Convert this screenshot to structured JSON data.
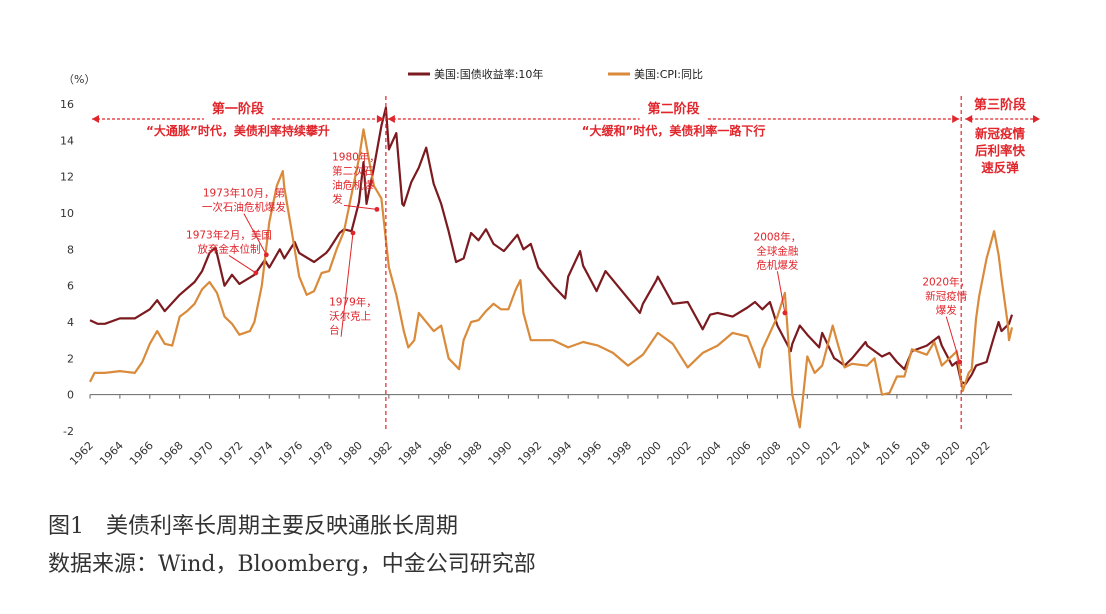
{
  "figure": {
    "title": "图1　美债利率长周期主要反映通胀长周期",
    "source": "数据来源：Wind，Bloomberg，中金公司研究部"
  },
  "colors": {
    "yield": "#7b1a1f",
    "cpi": "#d98a3a",
    "annotation": "#e0252b",
    "axis": "#333333"
  },
  "chart_data": {
    "type": "line",
    "unit_label": "（%）",
    "ylim": [
      -2,
      16
    ],
    "yticks": [
      -2,
      0,
      2,
      4,
      6,
      8,
      10,
      12,
      14,
      16
    ],
    "xlim": [
      1962,
      2023.7
    ],
    "xticks": [
      "1962",
      "1964",
      "1966",
      "1968",
      "1970",
      "1972",
      "1974",
      "1976",
      "1978",
      "1980",
      "1982",
      "1984",
      "1986",
      "1988",
      "1990",
      "1992",
      "1994",
      "1996",
      "1998",
      "2000",
      "2002",
      "2004",
      "2006",
      "2008",
      "2010",
      "2012",
      "2014",
      "2016",
      "2018",
      "2020",
      "2022"
    ],
    "legend_position": "top-center",
    "series": [
      {
        "name": "美国:国债收益率:10年",
        "color": "#7b1a1f",
        "points": [
          [
            1962,
            4.1
          ],
          [
            1962.5,
            3.9
          ],
          [
            1963,
            3.9
          ],
          [
            1964,
            4.2
          ],
          [
            1965,
            4.2
          ],
          [
            1966,
            4.7
          ],
          [
            1966.5,
            5.2
          ],
          [
            1967,
            4.6
          ],
          [
            1968,
            5.5
          ],
          [
            1969,
            6.2
          ],
          [
            1969.5,
            6.8
          ],
          [
            1970,
            7.8
          ],
          [
            1970.4,
            8.1
          ],
          [
            1971,
            6.0
          ],
          [
            1971.5,
            6.6
          ],
          [
            1972,
            6.1
          ],
          [
            1973,
            6.6
          ],
          [
            1973.7,
            7.4
          ],
          [
            1974,
            7.0
          ],
          [
            1974.7,
            8.0
          ],
          [
            1975,
            7.5
          ],
          [
            1975.7,
            8.4
          ],
          [
            1976,
            7.8
          ],
          [
            1977,
            7.3
          ],
          [
            1977.8,
            7.8
          ],
          [
            1978,
            8.0
          ],
          [
            1978.7,
            8.9
          ],
          [
            1979,
            9.1
          ],
          [
            1979.5,
            9.0
          ],
          [
            1980,
            10.6
          ],
          [
            1980.3,
            12.8
          ],
          [
            1980.5,
            10.5
          ],
          [
            1981,
            12.5
          ],
          [
            1981.5,
            14.8
          ],
          [
            1981.8,
            15.8
          ],
          [
            1982,
            13.5
          ],
          [
            1982.5,
            14.4
          ],
          [
            1982.9,
            10.5
          ],
          [
            1983,
            10.4
          ],
          [
            1983.5,
            11.7
          ],
          [
            1984,
            12.5
          ],
          [
            1984.5,
            13.6
          ],
          [
            1985,
            11.6
          ],
          [
            1985.5,
            10.5
          ],
          [
            1986,
            9.0
          ],
          [
            1986.5,
            7.3
          ],
          [
            1987,
            7.5
          ],
          [
            1987.5,
            8.9
          ],
          [
            1988,
            8.5
          ],
          [
            1988.5,
            9.1
          ],
          [
            1989,
            8.3
          ],
          [
            1989.7,
            7.9
          ],
          [
            1990,
            8.2
          ],
          [
            1990.6,
            8.8
          ],
          [
            1991,
            8.0
          ],
          [
            1991.5,
            8.3
          ],
          [
            1992,
            7.0
          ],
          [
            1993,
            6.0
          ],
          [
            1993.8,
            5.3
          ],
          [
            1994,
            6.5
          ],
          [
            1994.8,
            7.9
          ],
          [
            1995,
            7.1
          ],
          [
            1995.9,
            5.7
          ],
          [
            1996,
            5.9
          ],
          [
            1996.5,
            6.8
          ],
          [
            1997,
            6.3
          ],
          [
            1998,
            5.3
          ],
          [
            1998.8,
            4.5
          ],
          [
            1999,
            5.0
          ],
          [
            1999.9,
            6.3
          ],
          [
            2000,
            6.5
          ],
          [
            2001,
            5.0
          ],
          [
            2002,
            5.1
          ],
          [
            2002.8,
            3.9
          ],
          [
            2003,
            3.6
          ],
          [
            2003.5,
            4.4
          ],
          [
            2004,
            4.5
          ],
          [
            2005,
            4.3
          ],
          [
            2006,
            4.8
          ],
          [
            2006.5,
            5.1
          ],
          [
            2007,
            4.7
          ],
          [
            2007.5,
            5.1
          ],
          [
            2008,
            3.8
          ],
          [
            2008.9,
            2.4
          ],
          [
            2009,
            2.8
          ],
          [
            2009.5,
            3.8
          ],
          [
            2010,
            3.3
          ],
          [
            2010.8,
            2.6
          ],
          [
            2011,
            3.4
          ],
          [
            2011.8,
            2.0
          ],
          [
            2012,
            1.9
          ],
          [
            2012.5,
            1.6
          ],
          [
            2013,
            2.0
          ],
          [
            2013.9,
            2.9
          ],
          [
            2014,
            2.7
          ],
          [
            2015,
            2.1
          ],
          [
            2015.5,
            2.3
          ],
          [
            2016,
            1.8
          ],
          [
            2016.5,
            1.4
          ],
          [
            2017,
            2.4
          ],
          [
            2018,
            2.7
          ],
          [
            2018.8,
            3.2
          ],
          [
            2019,
            2.7
          ],
          [
            2019.7,
            1.6
          ],
          [
            2020,
            1.8
          ],
          [
            2020.3,
            0.7
          ],
          [
            2020.6,
            0.6
          ],
          [
            2021,
            1.1
          ],
          [
            2021.3,
            1.6
          ],
          [
            2022,
            1.8
          ],
          [
            2022.5,
            3.2
          ],
          [
            2022.8,
            4.0
          ],
          [
            2023,
            3.5
          ],
          [
            2023.5,
            3.9
          ],
          [
            2023.7,
            4.4
          ]
        ]
      },
      {
        "name": "美国:CPI:同比",
        "color": "#d98a3a",
        "points": [
          [
            1962,
            0.7
          ],
          [
            1962.3,
            1.2
          ],
          [
            1963,
            1.2
          ],
          [
            1964,
            1.3
          ],
          [
            1965,
            1.2
          ],
          [
            1965.5,
            1.8
          ],
          [
            1966,
            2.8
          ],
          [
            1966.5,
            3.5
          ],
          [
            1967,
            2.8
          ],
          [
            1967.5,
            2.7
          ],
          [
            1968,
            4.3
          ],
          [
            1968.5,
            4.6
          ],
          [
            1969,
            5.0
          ],
          [
            1969.5,
            5.8
          ],
          [
            1970,
            6.2
          ],
          [
            1970.5,
            5.6
          ],
          [
            1971,
            4.3
          ],
          [
            1971.5,
            3.9
          ],
          [
            1972,
            3.3
          ],
          [
            1972.7,
            3.5
          ],
          [
            1973,
            4.0
          ],
          [
            1973.5,
            6.0
          ],
          [
            1973.9,
            8.8
          ],
          [
            1974,
            9.5
          ],
          [
            1974.5,
            11.5
          ],
          [
            1974.9,
            12.3
          ],
          [
            1975,
            11.4
          ],
          [
            1975.5,
            9.0
          ],
          [
            1976,
            6.5
          ],
          [
            1976.5,
            5.5
          ],
          [
            1977,
            5.7
          ],
          [
            1977.5,
            6.7
          ],
          [
            1978,
            6.8
          ],
          [
            1978.5,
            8.0
          ],
          [
            1979,
            9.0
          ],
          [
            1979.5,
            11.0
          ],
          [
            1980,
            13.0
          ],
          [
            1980.3,
            14.6
          ],
          [
            1980.7,
            12.8
          ],
          [
            1981,
            11.5
          ],
          [
            1981.5,
            10.8
          ],
          [
            1982,
            7.0
          ],
          [
            1982.5,
            5.5
          ],
          [
            1983,
            3.5
          ],
          [
            1983.3,
            2.6
          ],
          [
            1983.7,
            3.0
          ],
          [
            1984,
            4.5
          ],
          [
            1985,
            3.5
          ],
          [
            1985.5,
            3.8
          ],
          [
            1986,
            2.0
          ],
          [
            1986.7,
            1.4
          ],
          [
            1987,
            3.0
          ],
          [
            1987.5,
            4.0
          ],
          [
            1988,
            4.1
          ],
          [
            1988.5,
            4.6
          ],
          [
            1989,
            5.0
          ],
          [
            1989.5,
            4.7
          ],
          [
            1990,
            4.7
          ],
          [
            1990.5,
            5.8
          ],
          [
            1990.8,
            6.3
          ],
          [
            1991,
            4.5
          ],
          [
            1991.5,
            3.0
          ],
          [
            1992,
            3.0
          ],
          [
            1993,
            3.0
          ],
          [
            1994,
            2.6
          ],
          [
            1995,
            2.9
          ],
          [
            1996,
            2.7
          ],
          [
            1997,
            2.3
          ],
          [
            1998,
            1.6
          ],
          [
            1999,
            2.2
          ],
          [
            2000,
            3.4
          ],
          [
            2001,
            2.8
          ],
          [
            2002,
            1.5
          ],
          [
            2003,
            2.3
          ],
          [
            2004,
            2.7
          ],
          [
            2005,
            3.4
          ],
          [
            2006,
            3.2
          ],
          [
            2006.8,
            1.5
          ],
          [
            2007,
            2.5
          ],
          [
            2008,
            4.3
          ],
          [
            2008.5,
            5.6
          ],
          [
            2009,
            0.0
          ],
          [
            2009.5,
            -1.8
          ],
          [
            2010,
            2.1
          ],
          [
            2010.5,
            1.2
          ],
          [
            2011,
            1.6
          ],
          [
            2011.7,
            3.8
          ],
          [
            2012,
            2.9
          ],
          [
            2012.5,
            1.5
          ],
          [
            2013,
            1.7
          ],
          [
            2014,
            1.6
          ],
          [
            2014.5,
            2.0
          ],
          [
            2015,
            0.0
          ],
          [
            2015.5,
            0.1
          ],
          [
            2016,
            1.0
          ],
          [
            2016.5,
            1.0
          ],
          [
            2017,
            2.5
          ],
          [
            2018,
            2.2
          ],
          [
            2018.5,
            2.9
          ],
          [
            2019,
            1.6
          ],
          [
            2019.9,
            2.3
          ],
          [
            2020,
            2.4
          ],
          [
            2020.4,
            0.2
          ],
          [
            2020.8,
            1.2
          ],
          [
            2021,
            1.4
          ],
          [
            2021.3,
            4.2
          ],
          [
            2021.5,
            5.4
          ],
          [
            2022,
            7.5
          ],
          [
            2022.5,
            9.0
          ],
          [
            2022.8,
            7.7
          ],
          [
            2023,
            6.4
          ],
          [
            2023.4,
            4.0
          ],
          [
            2023.5,
            3.0
          ],
          [
            2023.7,
            3.7
          ]
        ]
      }
    ],
    "phase_dividers": [
      1981.8,
      2020.3
    ],
    "phases": [
      {
        "label": "第一阶段",
        "desc": "“大通胀”时代，美债利率持续攀升",
        "range": [
          1962,
          1981.8
        ]
      },
      {
        "label": "第二阶段",
        "desc": "“大缓和”时代，美债利率一路下行",
        "range": [
          1981.8,
          2020.3
        ]
      },
      {
        "label": "第三阶段",
        "desc_lines": [
          "新冠疫情",
          "后利率快",
          "速反弹"
        ],
        "range": [
          2020.3,
          2023.7
        ]
      }
    ],
    "annotations": [
      {
        "lines": [
          "1973年2月，美国",
          "放弃金本位制"
        ],
        "anchor": [
          1973.1,
          6.7
        ],
        "text_pos": [
          1971.3,
          8.6
        ],
        "align": "middle"
      },
      {
        "lines": [
          "1973年10月，第",
          "一次石油危机爆发"
        ],
        "anchor": [
          1973.8,
          7.7
        ],
        "text_pos": [
          1972.3,
          10.9
        ],
        "align": "middle"
      },
      {
        "lines": [
          "1980年，",
          "第二次石",
          "油危机爆",
          "发"
        ],
        "anchor": [
          1981.2,
          10.2
        ],
        "text_pos": [
          1978.2,
          12.9
        ],
        "align": "start"
      },
      {
        "lines": [
          "1979年，",
          "沃尔克上",
          "台"
        ],
        "anchor": [
          1979.6,
          8.9
        ],
        "text_pos": [
          1978.0,
          4.9
        ],
        "align": "start"
      },
      {
        "lines": [
          "2008年，",
          "全球金融",
          "危机爆发"
        ],
        "anchor": [
          2008.5,
          4.5
        ],
        "text_pos": [
          2008.0,
          8.5
        ],
        "align": "middle"
      },
      {
        "lines": [
          "2020年，",
          "新冠疫情",
          "爆发"
        ],
        "anchor": [
          2020.2,
          1.8
        ],
        "text_pos": [
          2019.3,
          6.0
        ],
        "align": "middle"
      }
    ]
  }
}
